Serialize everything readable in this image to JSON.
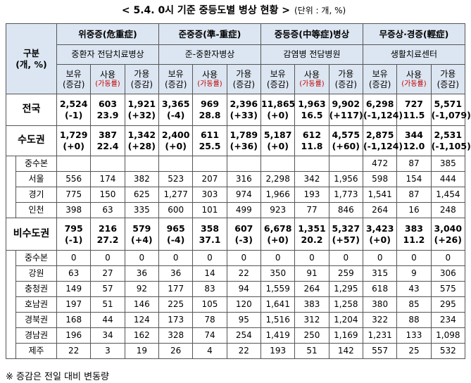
{
  "title": "< 5.4. 0시 기준 중등도별 병상 현황 >",
  "unit": "(단위 : 개, %)",
  "table": {
    "corner": [
      "구분",
      "(개, %)"
    ],
    "groups": [
      {
        "name": "위중증(危重症)",
        "sub": "중환자 전담치료병상",
        "columns": [
          [
            "보유",
            "(증감)"
          ],
          [
            "사용",
            "(가동률)"
          ],
          [
            "가용",
            "(증감)"
          ]
        ]
      },
      {
        "name": "준중증(準-重症)",
        "sub": "준-중환자병상",
        "columns": [
          [
            "보유",
            "(증감)"
          ],
          [
            "사용",
            "(가동률)"
          ],
          [
            "가용",
            "(증감)"
          ]
        ]
      },
      {
        "name": "중등증(中等症)병상",
        "sub": "감염병 전담병원",
        "columns": [
          [
            "보유",
            "(증감)"
          ],
          [
            "사용",
            "(가동률)"
          ],
          [
            "가용",
            "(증감)"
          ]
        ]
      },
      {
        "name": "무증상·경증(輕症)",
        "sub": "생활치료센터",
        "columns": [
          [
            "보유",
            "(증감)"
          ],
          [
            "사용",
            "(가동률)"
          ],
          [
            "가용",
            "(증감)"
          ]
        ]
      }
    ],
    "national": {
      "label": "전국",
      "cells": [
        [
          "2,524",
          "(-1)"
        ],
        [
          "603",
          "23.9"
        ],
        [
          "1,921",
          "(+32)"
        ],
        [
          "3,365",
          "(-4)"
        ],
        [
          "969",
          "28.8"
        ],
        [
          "2,396",
          "(+33)"
        ],
        [
          "11,865",
          "(+0)"
        ],
        [
          "1,963",
          "16.5"
        ],
        [
          "9,902",
          "(+117)"
        ],
        [
          "6,298",
          "(-1,124)"
        ],
        [
          "727",
          "11.5"
        ],
        [
          "5,571",
          "(-1,079)"
        ]
      ]
    },
    "sections": [
      {
        "label": "수도권",
        "cells": [
          [
            "1,729",
            "(+0)"
          ],
          [
            "387",
            "22.4"
          ],
          [
            "1,342",
            "(+28)"
          ],
          [
            "2,400",
            "(+0)"
          ],
          [
            "611",
            "25.5"
          ],
          [
            "1,789",
            "(+36)"
          ],
          [
            "5,187",
            "(+0)"
          ],
          [
            "612",
            "11.8"
          ],
          [
            "4,575",
            "(+60)"
          ],
          [
            "2,875",
            "(-1,124)"
          ],
          [
            "344",
            "12.0"
          ],
          [
            "2,531",
            "(-1,105)"
          ]
        ],
        "regions": [
          {
            "label": "중수본",
            "cells": [
              null,
              null,
              null,
              null,
              null,
              null,
              null,
              null,
              null,
              "472",
              "87",
              "385"
            ]
          },
          {
            "label": "서울",
            "cells": [
              "556",
              "174",
              "382",
              "523",
              "207",
              "316",
              "2,298",
              "342",
              "1,956",
              "598",
              "154",
              "444"
            ]
          },
          {
            "label": "경기",
            "cells": [
              "775",
              "150",
              "625",
              "1,277",
              "303",
              "974",
              "1,966",
              "193",
              "1,773",
              "1,541",
              "87",
              "1,454"
            ]
          },
          {
            "label": "인천",
            "cells": [
              "398",
              "63",
              "335",
              "600",
              "101",
              "499",
              "923",
              "77",
              "846",
              "264",
              "16",
              "248"
            ]
          }
        ]
      },
      {
        "label": "비수도권",
        "cells": [
          [
            "795",
            "(-1)"
          ],
          [
            "216",
            "27.2"
          ],
          [
            "579",
            "(+4)"
          ],
          [
            "965",
            "(-4)"
          ],
          [
            "358",
            "37.1"
          ],
          [
            "607",
            "(-3)"
          ],
          [
            "6,678",
            "(+0)"
          ],
          [
            "1,351",
            "20.2"
          ],
          [
            "5,327",
            "(+57)"
          ],
          [
            "3,423",
            "(+0)"
          ],
          [
            "383",
            "11.2"
          ],
          [
            "3,040",
            "(+26)"
          ]
        ],
        "regions": [
          {
            "label": "중수본",
            "cells": [
              "0",
              "0",
              "0",
              "0",
              "0",
              "0",
              "0",
              "0",
              "0",
              "0",
              "0",
              "0"
            ]
          },
          {
            "label": "강원",
            "cells": [
              "63",
              "27",
              "36",
              "36",
              "14",
              "22",
              "350",
              "91",
              "259",
              "315",
              "9",
              "306"
            ]
          },
          {
            "label": "충청권",
            "cells": [
              "149",
              "57",
              "92",
              "177",
              "83",
              "94",
              "1,559",
              "264",
              "1,295",
              "618",
              "43",
              "575"
            ]
          },
          {
            "label": "호남권",
            "cells": [
              "197",
              "51",
              "146",
              "225",
              "105",
              "120",
              "1,641",
              "383",
              "1,258",
              "380",
              "85",
              "295"
            ]
          },
          {
            "label": "경북권",
            "cells": [
              "168",
              "44",
              "124",
              "173",
              "78",
              "95",
              "1,516",
              "312",
              "1,204",
              "322",
              "88",
              "234"
            ]
          },
          {
            "label": "경남권",
            "cells": [
              "196",
              "34",
              "162",
              "328",
              "74",
              "254",
              "1,419",
              "250",
              "1,169",
              "1,231",
              "133",
              "1,098"
            ]
          },
          {
            "label": "제주",
            "cells": [
              "22",
              "3",
              "19",
              "26",
              "4",
              "22",
              "193",
              "51",
              "142",
              "557",
              "25",
              "532"
            ]
          }
        ]
      }
    ]
  },
  "footnote": "※ 증감은 전일 대비 변동량"
}
